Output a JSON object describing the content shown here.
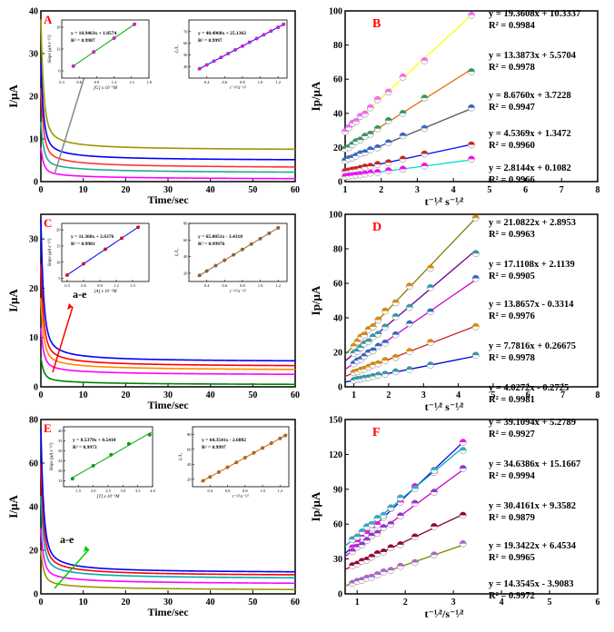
{
  "chart_data": [
    {
      "panel": "A",
      "type": "line",
      "title": "",
      "xlabel": "Time/sec",
      "ylabel": "I/μA",
      "xlim": [
        0,
        60
      ],
      "ylim": [
        0,
        40
      ],
      "xticks": [
        "0",
        "10",
        "20",
        "30",
        "40",
        "50",
        "60"
      ],
      "yticks": [
        "0",
        "10",
        "20",
        "30",
        "40"
      ],
      "annotation": "a-e",
      "series": [
        {
          "name": "a",
          "color": "#ff00ff",
          "i0": 8,
          "plateau": 0.3,
          "decay": 0.5
        },
        {
          "name": "b",
          "color": "#22aa88",
          "i0": 14,
          "plateau": 1.8,
          "decay": 0.6
        },
        {
          "name": "c",
          "color": "#ff3333",
          "i0": 22,
          "plateau": 3.0,
          "decay": 0.7
        },
        {
          "name": "d",
          "color": "#0000ff",
          "i0": 28,
          "plateau": 4.8,
          "decay": 0.8
        },
        {
          "name": "e",
          "color": "#999900",
          "i0": 38,
          "plateau": 7.3,
          "decay": 0.9
        }
      ],
      "inset_left": {
        "xlabel": "[G] x 10⁻⁵M",
        "ylabel": "Slope (μA s⁻¹⁄²)",
        "equation": "y = 10.9463x + 1.8574",
        "r2": "R² = 0.9987",
        "xlim": [
          0.3,
          1.8
        ],
        "ylim": [
          4,
          20
        ],
        "xticks": [
          "0.3",
          "0.6",
          "0.9",
          "1.2",
          "1.5",
          "1.8"
        ],
        "yticks": [
          "6",
          "12",
          "18"
        ],
        "x": [
          0.5,
          0.85,
          1.2,
          1.55
        ],
        "y": [
          7.3,
          11.2,
          15.0,
          18.8
        ],
        "line_color": "#00aa00",
        "marker_color": "#ff00ff"
      },
      "inset_right": {
        "xlabel": "t⁻¹⁄²/s⁻¹⁄²",
        "ylabel": "Iₓ/I₁",
        "equation": "y = 40.4968x + 25.1362",
        "r2": "R² = 0.9997",
        "xlim": [
          0.2,
          1.3
        ],
        "ylim": [
          30,
          80
        ],
        "xticks": [
          "0.4",
          "0.6",
          "0.8",
          "1.0",
          "1.2"
        ],
        "yticks": [
          "40",
          "50",
          "60",
          "70"
        ],
        "x": [
          0.32,
          0.4,
          0.48,
          0.56,
          0.64,
          0.72,
          0.8,
          0.88,
          0.96,
          1.04,
          1.12,
          1.2,
          1.26
        ],
        "y": [
          38.1,
          41.3,
          44.6,
          47.8,
          51.1,
          54.3,
          57.5,
          60.8,
          64.0,
          67.3,
          70.5,
          73.7,
          76.2
        ],
        "line_color": "#0000ff",
        "marker_color": "#ff00ff"
      }
    },
    {
      "panel": "B",
      "type": "scatter",
      "title": "",
      "xlabel": "t⁻¹⁄² s⁻¹⁄²",
      "ylabel": "Ip/μA",
      "xlim": [
        1,
        8
      ],
      "ylim": [
        0,
        100
      ],
      "xticks": [
        "1",
        "2",
        "3",
        "4",
        "5",
        "6",
        "7",
        "8"
      ],
      "yticks": [
        "0",
        "20",
        "40",
        "60",
        "80",
        "100"
      ],
      "series": [
        {
          "name": "1",
          "slope": 19.3608,
          "intercept": 10.3337,
          "color": "#ffff00",
          "marker": "#ff66ff",
          "equation": "y = 19.3608x + 10.3337",
          "r2": "R² = 0.9984"
        },
        {
          "name": "2",
          "slope": 13.3873,
          "intercept": 5.5704,
          "color": "#e07000",
          "marker": "#339966",
          "equation": "y = 13.3873x + 5.5704",
          "r2": "R² = 0.9978"
        },
        {
          "name": "3",
          "slope": 8.676,
          "intercept": 3.7228,
          "color": "#555555",
          "marker": "#3366cc",
          "equation": "y = 8.6760x + 3.7228",
          "r2": "R² = 0.9947"
        },
        {
          "name": "4",
          "slope": 4.5369,
          "intercept": 1.3472,
          "color": "#0000ff",
          "marker": "#cc2222",
          "equation": "y = 4.5369x + 1.3472",
          "r2": "R² = 0.9960"
        },
        {
          "name": "5",
          "slope": 2.8144,
          "intercept": 0.1082,
          "color": "#00dddd",
          "marker": "#ff00ff",
          "equation": "y = 2.8144x + 0.1082",
          "r2": "R² = 0.9966"
        }
      ],
      "x_points": [
        1.0,
        1.1,
        1.2,
        1.3,
        1.42,
        1.55,
        1.7,
        1.9,
        2.2,
        2.6,
        3.2,
        4.5
      ]
    },
    {
      "panel": "C",
      "type": "line",
      "title": "",
      "xlabel": "Time/sec",
      "ylabel": "I/μA",
      "xlim": [
        0,
        60
      ],
      "ylim": [
        0,
        35
      ],
      "xticks": [
        "0",
        "10",
        "20",
        "30",
        "40",
        "50",
        "60"
      ],
      "yticks": [
        "0",
        "10",
        "20",
        "30"
      ],
      "annotation": "a-e",
      "series": [
        {
          "name": "a",
          "color": "#008000",
          "i0": 6,
          "plateau": 0.2,
          "decay": 0.5
        },
        {
          "name": "b",
          "color": "#ff00ff",
          "i0": 12,
          "plateau": 2.2,
          "decay": 0.6
        },
        {
          "name": "c",
          "color": "#ff8800",
          "i0": 18,
          "plateau": 3.2,
          "decay": 0.7
        },
        {
          "name": "d",
          "color": "#ff0000",
          "i0": 25,
          "plateau": 4.0,
          "decay": 0.8
        },
        {
          "name": "e",
          "color": "#0000ff",
          "i0": 34,
          "plateau": 5.0,
          "decay": 0.9
        }
      ],
      "inset_left": {
        "xlabel": "[A] x 10⁻⁵M",
        "ylabel": "Slope (μA s⁻¹⁄²)",
        "equation": "y = 11.360x + 2.6376",
        "r2": "R² = 0.9981",
        "xlim": [
          0.2,
          1.8
        ],
        "ylim": [
          4,
          22
        ],
        "xticks": [
          "0.3",
          "0.6",
          "0.9",
          "1.2",
          "1.5"
        ],
        "yticks": [
          "5",
          "10",
          "15",
          "20"
        ],
        "x": [
          0.3,
          0.6,
          1.0,
          1.3,
          1.6
        ],
        "y": [
          6.0,
          9.5,
          14.0,
          17.4,
          20.8
        ],
        "line_color": "#0000ff",
        "marker_color": "#ff0000"
      },
      "inset_right": {
        "xlabel": "t⁻¹⁄²/s⁻¹⁄²",
        "ylabel": "Iₓ/I₁",
        "equation": "y = 65.0051x - 3.4318",
        "r2": "R² = 0.99976",
        "xlim": [
          0.2,
          1.3
        ],
        "ylim": [
          10,
          80
        ],
        "xticks": [
          "0.4",
          "0.6",
          "0.8",
          "1.0",
          "1.2"
        ],
        "yticks": [
          "20",
          "40",
          "60",
          "80"
        ],
        "x": [
          0.32,
          0.4,
          0.5,
          0.6,
          0.7,
          0.8,
          0.9,
          1.0,
          1.1,
          1.2
        ],
        "y": [
          17.4,
          22.6,
          29.1,
          35.6,
          42.1,
          48.6,
          55.1,
          61.6,
          68.1,
          74.6
        ],
        "line_color": "#996633",
        "marker_color": "#996633"
      }
    },
    {
      "panel": "D",
      "type": "scatter",
      "title": "",
      "xlabel": "t⁻¹⁄² s⁻¹⁄²",
      "ylabel": "Ip/μA",
      "xlim": [
        0.75,
        8
      ],
      "ylim": [
        0,
        100
      ],
      "xticks": [
        "1",
        "2",
        "3",
        "4",
        "5",
        "6",
        "7",
        "8"
      ],
      "yticks": [
        "0",
        "20",
        "40",
        "60",
        "80",
        "100"
      ],
      "series": [
        {
          "name": "1",
          "slope": 21.0822,
          "intercept": 2.8953,
          "color": "#808000",
          "marker": "#e08800",
          "equation": "y = 21.0822x + 2.8953",
          "r2": "R² = 0.9963"
        },
        {
          "name": "2",
          "slope": 17.1108,
          "intercept": 2.1139,
          "color": "#660099",
          "marker": "#3399aa",
          "equation": "y = 17.1108x + 2.1139",
          "r2": "R² = 0.9905"
        },
        {
          "name": "3",
          "slope": 13.8657,
          "intercept": -0.3314,
          "color": "#cc00cc",
          "marker": "#3366cc",
          "equation": "y = 13.8657x - 0.3314",
          "r2": "R² = 0.9976"
        },
        {
          "name": "4",
          "slope": 7.7816,
          "intercept": 0.26675,
          "color": "#cc2222",
          "marker": "#e08800",
          "equation": "y = 7.7816x + 0.26675",
          "r2": "R² = 0.9978"
        },
        {
          "name": "5",
          "slope": 4.0272,
          "intercept": -0.2725,
          "color": "#0000cc",
          "marker": "#3399aa",
          "equation": "y = 4.0272x - 0.2725",
          "r2": "R² = 0.9981"
        }
      ],
      "x_points": [
        1.0,
        1.1,
        1.2,
        1.3,
        1.42,
        1.55,
        1.7,
        1.9,
        2.2,
        2.6,
        3.2,
        4.5
      ]
    },
    {
      "panel": "E",
      "type": "line",
      "title": "",
      "xlabel": "Time/sec",
      "ylabel": "I/μA",
      "xlim": [
        0,
        60
      ],
      "ylim": [
        0,
        80
      ],
      "xticks": [
        "0",
        "10",
        "20",
        "30",
        "40",
        "50",
        "60"
      ],
      "yticks": [
        "0",
        "20",
        "40",
        "60",
        "80"
      ],
      "annotation": "a-e",
      "series": [
        {
          "name": "a",
          "color": "#999900",
          "i0": 20,
          "plateau": 1.0,
          "decay": 0.5
        },
        {
          "name": "b",
          "color": "#ff00ff",
          "i0": 30,
          "plateau": 4.0,
          "decay": 0.6
        },
        {
          "name": "c",
          "color": "#00aaaa",
          "i0": 45,
          "plateau": 6.5,
          "decay": 0.7
        },
        {
          "name": "d",
          "color": "#ff0000",
          "i0": 60,
          "plateau": 8.0,
          "decay": 0.8
        },
        {
          "name": "e",
          "color": "#0000ff",
          "i0": 76,
          "plateau": 9.5,
          "decay": 0.9
        }
      ],
      "inset_left": {
        "xlabel": "[T] x 10⁻⁵M",
        "ylabel": "Slope (μA s⁻¹⁄²)",
        "equation": "y = 8.5379x + 0.5410",
        "r2": "R² = 0.9973",
        "xlim": [
          1.0,
          4.0
        ],
        "ylim": [
          12,
          42
        ],
        "xticks": [
          "1.5",
          "2.0",
          "2.5",
          "3.0",
          "3.5",
          "4.0"
        ],
        "yticks": [
          "15",
          "20",
          "25",
          "30",
          "35",
          "40"
        ],
        "x": [
          1.3,
          2.0,
          2.6,
          3.2,
          3.9
        ],
        "y": [
          16.0,
          22.5,
          28.0,
          33.5,
          38.0
        ],
        "line_color": "#00aa00",
        "marker_color": "#00aa00"
      },
      "inset_right": {
        "xlabel": "t⁻¹⁄²/s⁻¹⁄²",
        "ylabel": "Iₓ/I₁",
        "equation": "y = 64.3541x - 2.6882",
        "r2": "R² = 0.9997",
        "xlim": [
          0.2,
          1.3
        ],
        "ylim": [
          10,
          90
        ],
        "xticks": [
          "0.4",
          "0.6",
          "0.8",
          "1.0",
          "1.2"
        ],
        "yticks": [
          "20",
          "40",
          "60",
          "80"
        ],
        "x": [
          0.32,
          0.4,
          0.5,
          0.6,
          0.7,
          0.8,
          0.9,
          1.0,
          1.1,
          1.2,
          1.26
        ],
        "y": [
          17.9,
          23.1,
          29.5,
          36.0,
          42.4,
          48.8,
          55.2,
          61.7,
          68.1,
          74.5,
          78.4
        ],
        "line_color": "#cc6600",
        "marker_color": "#cc6600"
      }
    },
    {
      "panel": "F",
      "type": "scatter",
      "title": "",
      "xlabel": "t⁻¹⁄²/s⁻¹⁄²",
      "ylabel": "Ip/μA",
      "xlim": [
        0.75,
        6
      ],
      "ylim": [
        0,
        150
      ],
      "xticks": [
        "1",
        "2",
        "3",
        "4",
        "5",
        "6"
      ],
      "yticks": [
        "0",
        "30",
        "60",
        "90",
        "120",
        "150"
      ],
      "series": [
        {
          "name": "1",
          "slope": 39.1094,
          "intercept": 5.2789,
          "color": "#0000ff",
          "marker": "#ff00ff",
          "equation": "y = 39.1094x + 5.2789",
          "r2": "R² = 0.9927"
        },
        {
          "name": "2",
          "slope": 34.6386,
          "intercept": 15.1667,
          "color": "#00aaaa",
          "marker": "#33aacc",
          "equation": "y = 34.6386x + 15.1667",
          "r2": "R² = 0.9994"
        },
        {
          "name": "3",
          "slope": 30.4161,
          "intercept": 9.3582,
          "color": "#cc00cc",
          "marker": "#9933cc",
          "equation": "y = 30.4161x + 9.3582",
          "r2": "R² = 0.9879"
        },
        {
          "name": "4",
          "slope": 19.3422,
          "intercept": 6.4534,
          "color": "#800040",
          "marker": "#990033",
          "equation": "y = 19.3422x + 6.4534",
          "r2": "R² = 0.9965"
        },
        {
          "name": "5",
          "slope": 14.3545,
          "intercept": -3.9083,
          "color": "#808000",
          "marker": "#aa66cc",
          "equation": "y = 14.3545x - 3.9083",
          "r2": "R² = 0.9972"
        }
      ],
      "x_points": [
        0.9,
        1.0,
        1.1,
        1.2,
        1.3,
        1.42,
        1.55,
        1.7,
        1.9,
        2.2,
        2.6,
        3.2
      ]
    }
  ]
}
